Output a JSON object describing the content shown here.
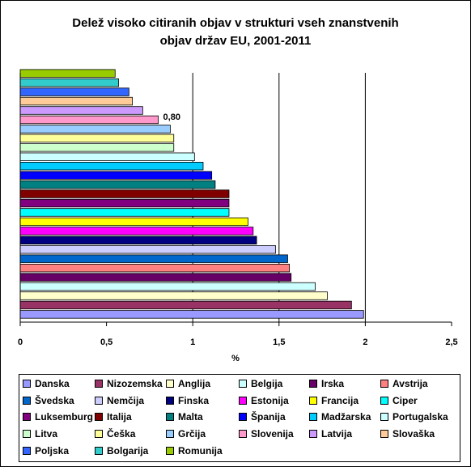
{
  "chart_data": {
    "type": "bar",
    "orientation": "horizontal",
    "title_lines": [
      "Delež visoko citiranih objav v strukturi vseh znanstvenih",
      "objav držav EU, 2001-2011"
    ],
    "xlabel": "%",
    "ylabel": "",
    "xlim": [
      0,
      2.5
    ],
    "x_ticks": [
      "0",
      "0,5",
      "1",
      "1,5",
      "2",
      "2,5"
    ],
    "grid": "vertical gridlines at 1, 1.5, 2",
    "legend_position": "bottom",
    "annotation": {
      "text": "0,80",
      "category": "Slovenija"
    },
    "categories": [
      "Danska",
      "Nizozemska",
      "Anglija",
      "Belgija",
      "Irska",
      "Avstrija",
      "Švedska",
      "Nemčija",
      "Finska",
      "Estonija",
      "Francija",
      "Ciper",
      "Luksemburg",
      "Italija",
      "Malta",
      "Španija",
      "Madžarska",
      "Portugalska",
      "Litva",
      "Češka",
      "Grčija",
      "Slovenija",
      "Latvija",
      "Slovaška",
      "Poljska",
      "Bolgarija",
      "Romunija"
    ],
    "values": [
      1.99,
      1.92,
      1.78,
      1.71,
      1.57,
      1.56,
      1.55,
      1.48,
      1.37,
      1.35,
      1.32,
      1.21,
      1.21,
      1.21,
      1.13,
      1.11,
      1.06,
      1.01,
      0.89,
      0.89,
      0.87,
      0.8,
      0.71,
      0.65,
      0.63,
      0.57,
      0.55
    ],
    "colors": [
      "#9999ff",
      "#993366",
      "#ffffcc",
      "#ccffff",
      "#660066",
      "#ff8080",
      "#0066cc",
      "#ccccff",
      "#000080",
      "#ff00ff",
      "#ffff00",
      "#00ffff",
      "#800080",
      "#800000",
      "#008080",
      "#0000ff",
      "#00ccff",
      "#ccffff",
      "#ccffcc",
      "#ffff99",
      "#99ccff",
      "#ff99cc",
      "#cc99ff",
      "#ffcc99",
      "#3366ff",
      "#33cccc",
      "#99cc00"
    ]
  }
}
